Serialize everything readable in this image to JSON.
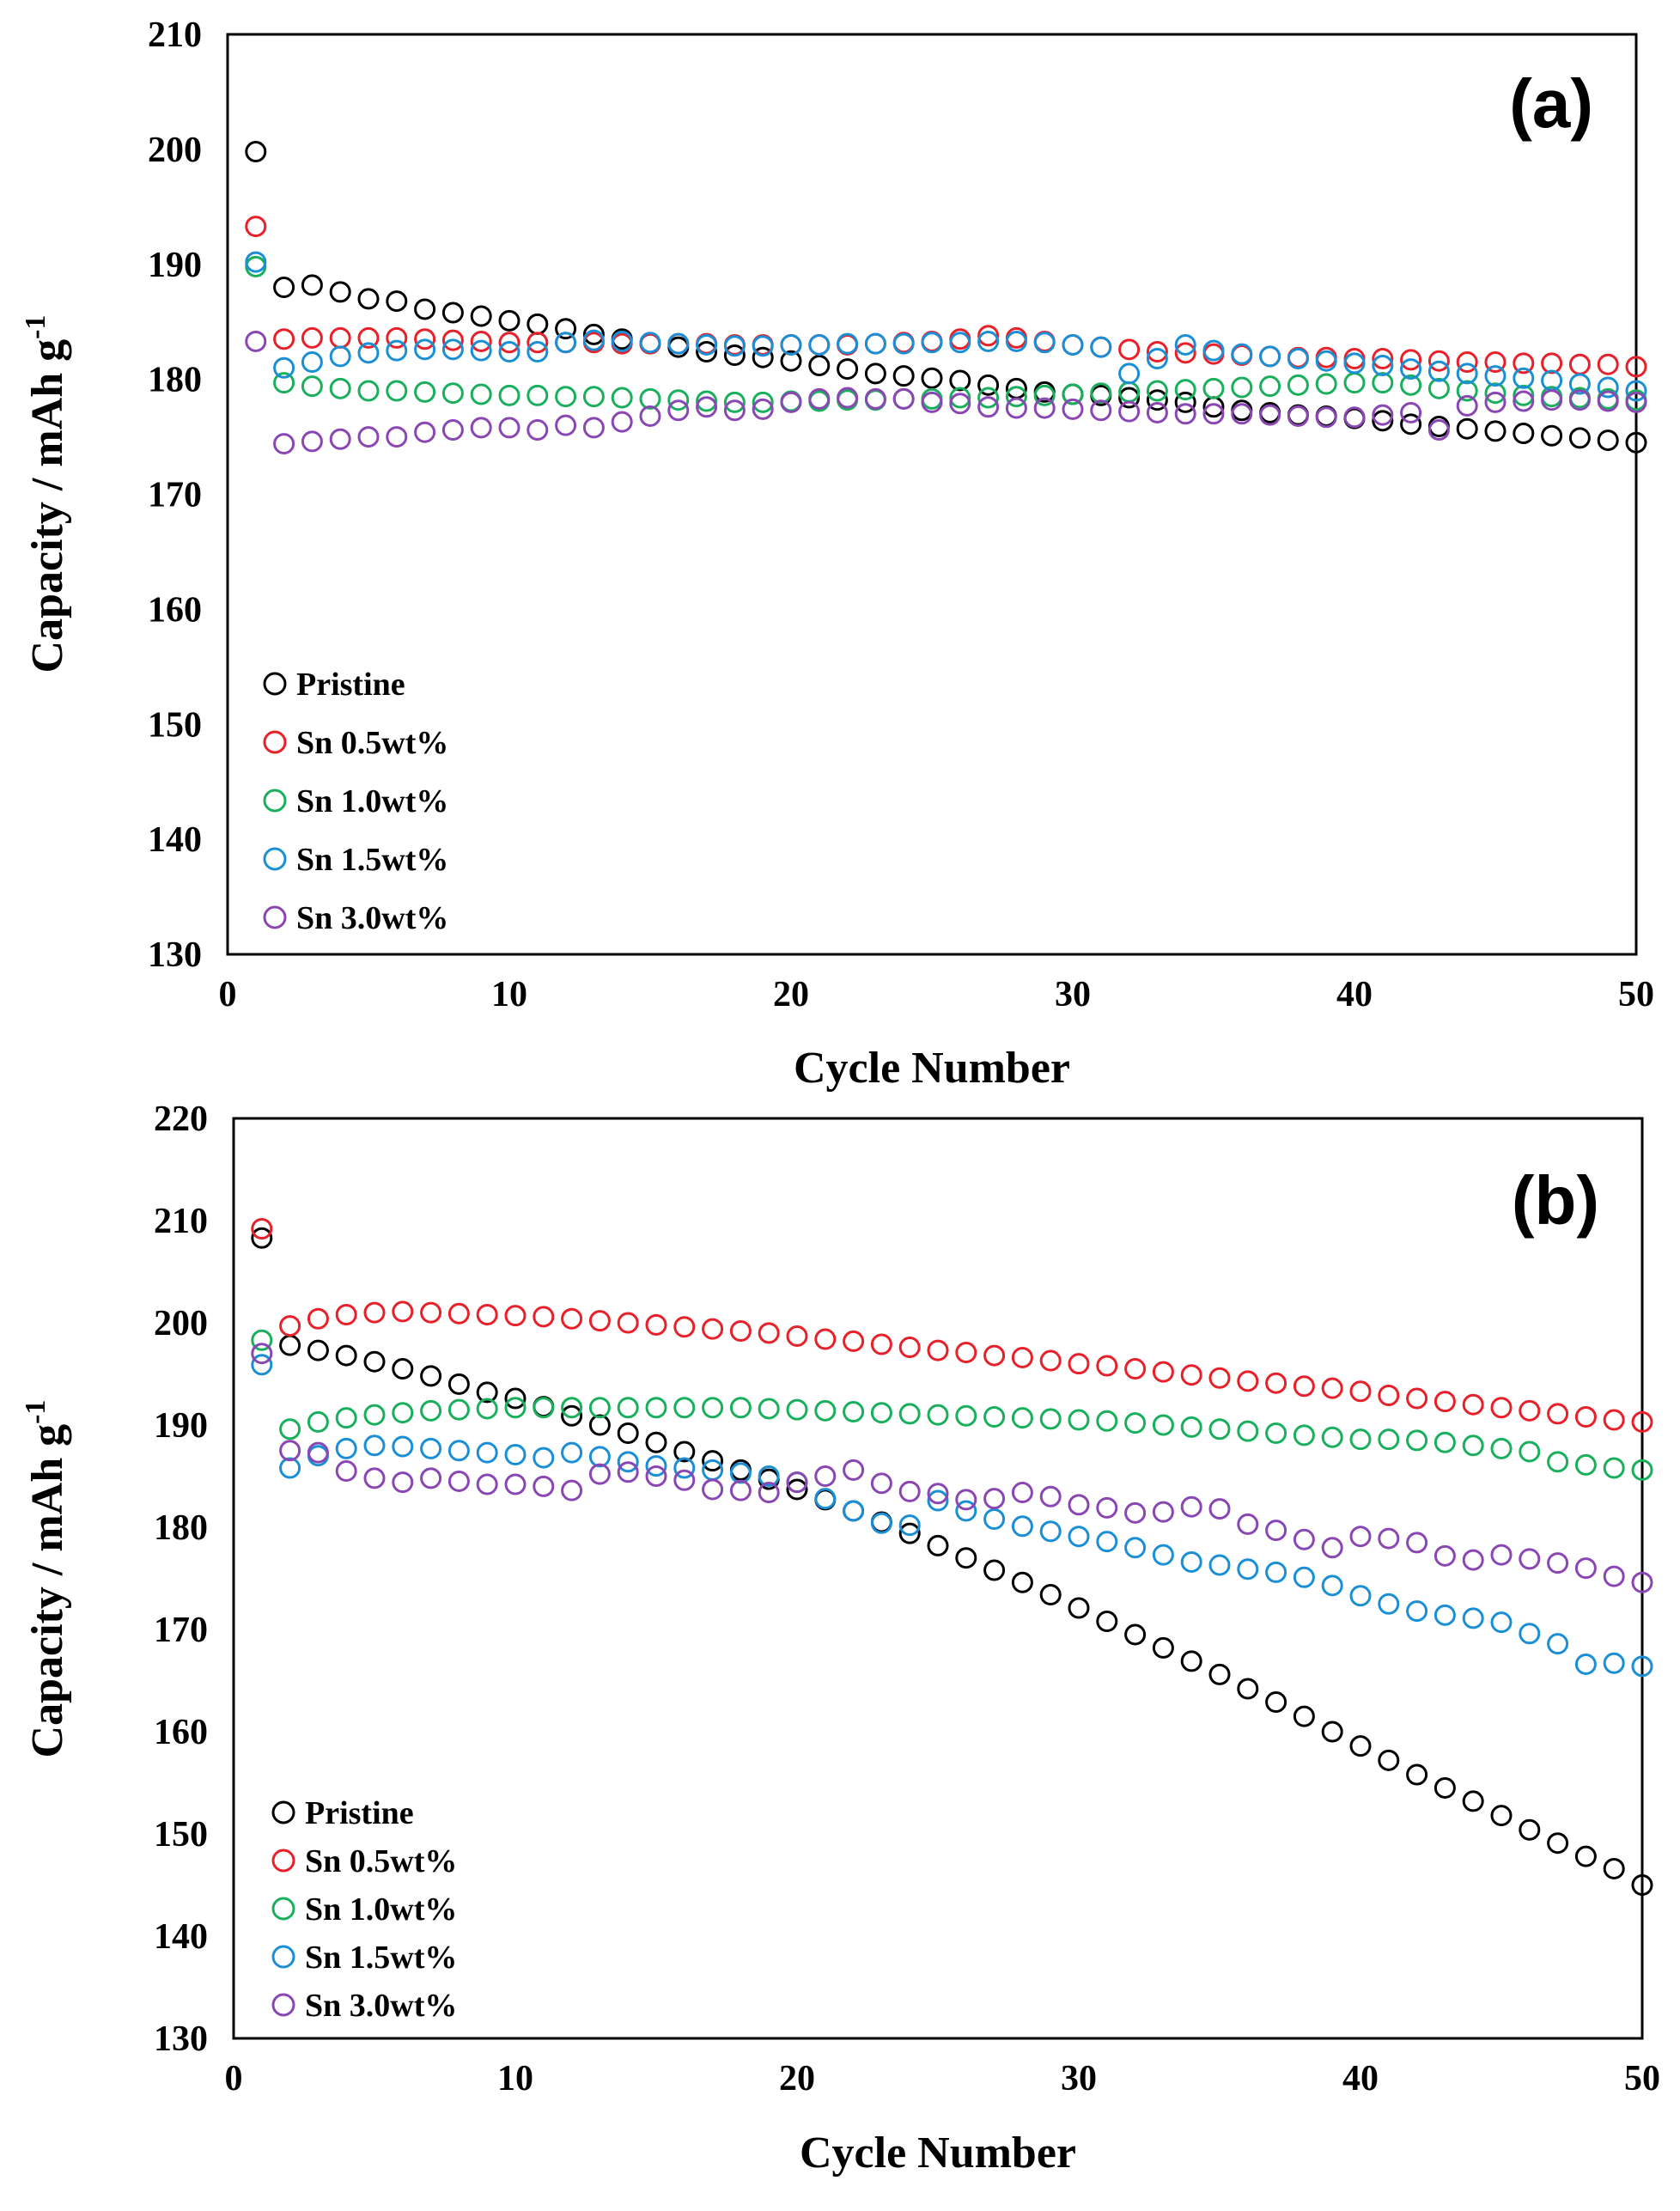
{
  "chart_data": [
    {
      "type": "scatter",
      "panel_label": "(a)",
      "xlabel": "Cycle Number",
      "ylabel_main": "Capacity / mAh g",
      "ylabel_sup": "-1",
      "xlim": [
        0,
        50
      ],
      "ylim": [
        130,
        210
      ],
      "xticks": [
        0,
        10,
        20,
        30,
        40,
        50
      ],
      "yticks": [
        130,
        140,
        150,
        160,
        170,
        180,
        190,
        200,
        210
      ],
      "legend_position": "lower-left",
      "series": [
        {
          "name": "Pristine",
          "color": "#000000",
          "values": [
            199.8,
            188.0,
            188.2,
            187.6,
            187.0,
            186.8,
            186.1,
            185.8,
            185.5,
            185.1,
            184.8,
            184.4,
            183.9,
            183.5,
            183.1,
            182.8,
            182.4,
            182.1,
            181.9,
            181.6,
            181.2,
            180.9,
            180.5,
            180.3,
            180.1,
            179.9,
            179.5,
            179.2,
            178.9,
            178.7,
            178.6,
            178.4,
            178.2,
            178.0,
            177.6,
            177.3,
            177.1,
            176.9,
            176.8,
            176.6,
            176.4,
            176.1,
            175.9,
            175.7,
            175.5,
            175.3,
            175.1,
            174.9,
            174.7,
            174.5
          ]
        },
        {
          "name": "Sn 0.5wt%",
          "color": "#e8202a",
          "values": [
            193.3,
            183.5,
            183.6,
            183.6,
            183.6,
            183.6,
            183.5,
            183.4,
            183.3,
            183.2,
            183.2,
            183.2,
            183.2,
            183.1,
            183.1,
            183.1,
            183.1,
            183.0,
            183.0,
            183.0,
            183.0,
            183.0,
            183.1,
            183.2,
            183.3,
            183.5,
            183.8,
            183.6,
            183.3,
            183.0,
            182.8,
            182.6,
            182.4,
            182.3,
            182.2,
            182.1,
            182.0,
            181.9,
            181.9,
            181.8,
            181.8,
            181.7,
            181.6,
            181.5,
            181.5,
            181.4,
            181.4,
            181.3,
            181.3,
            181.1
          ]
        },
        {
          "name": "Sn 1.0wt%",
          "color": "#1aaf5d",
          "values": [
            189.8,
            179.7,
            179.4,
            179.2,
            179.0,
            179.0,
            178.9,
            178.8,
            178.7,
            178.6,
            178.6,
            178.5,
            178.5,
            178.4,
            178.3,
            178.2,
            178.1,
            178.0,
            178.0,
            178.1,
            178.1,
            178.2,
            178.2,
            178.3,
            178.3,
            178.4,
            178.4,
            178.5,
            178.6,
            178.7,
            178.8,
            178.9,
            179.0,
            179.1,
            179.2,
            179.3,
            179.4,
            179.5,
            179.6,
            179.7,
            179.7,
            179.5,
            179.2,
            179.0,
            178.8,
            178.6,
            178.5,
            178.4,
            178.3,
            178.2
          ]
        },
        {
          "name": "Sn 1.5wt%",
          "color": "#1a8fd6",
          "values": [
            190.2,
            181.0,
            181.5,
            182.0,
            182.3,
            182.5,
            182.6,
            182.6,
            182.5,
            182.4,
            182.4,
            183.2,
            183.4,
            183.3,
            183.2,
            183.1,
            183.0,
            182.9,
            182.9,
            183.0,
            183.0,
            183.1,
            183.1,
            183.1,
            183.2,
            183.2,
            183.3,
            183.3,
            183.2,
            183.0,
            182.8,
            180.5,
            181.8,
            183.0,
            182.5,
            182.2,
            182.0,
            181.8,
            181.6,
            181.4,
            181.2,
            180.9,
            180.7,
            180.5,
            180.3,
            180.1,
            179.9,
            179.6,
            179.3,
            179.0
          ]
        },
        {
          "name": "Sn 3.0wt%",
          "color": "#8a47b4",
          "values": [
            183.3,
            174.4,
            174.6,
            174.8,
            175.0,
            175.0,
            175.4,
            175.6,
            175.8,
            175.8,
            175.6,
            176.0,
            175.8,
            176.3,
            176.8,
            177.3,
            177.6,
            177.3,
            177.4,
            178.0,
            178.3,
            178.4,
            178.3,
            178.3,
            178.0,
            177.9,
            177.6,
            177.5,
            177.5,
            177.4,
            177.3,
            177.2,
            177.1,
            177.0,
            177.0,
            177.0,
            176.9,
            176.8,
            176.7,
            176.7,
            176.9,
            177.1,
            175.6,
            177.7,
            178.0,
            178.1,
            178.2,
            178.2,
            178.1,
            178.0
          ]
        }
      ]
    },
    {
      "type": "scatter",
      "panel_label": "(b)",
      "xlabel": "Cycle Number",
      "ylabel_main": "Capacity / mAh g",
      "ylabel_sup": "-1",
      "xlim": [
        0,
        50
      ],
      "ylim": [
        130,
        220
      ],
      "xticks": [
        0,
        10,
        20,
        30,
        40,
        50
      ],
      "yticks": [
        130,
        140,
        150,
        160,
        170,
        180,
        190,
        200,
        210,
        220
      ],
      "legend_position": "lower-left",
      "series": [
        {
          "name": "Pristine",
          "color": "#000000",
          "values": [
            208.3,
            197.8,
            197.3,
            196.8,
            196.2,
            195.5,
            194.8,
            194.0,
            193.2,
            192.6,
            191.8,
            190.9,
            190.0,
            189.2,
            188.3,
            187.4,
            186.5,
            185.6,
            184.7,
            183.7,
            182.7,
            181.6,
            180.5,
            179.4,
            178.2,
            177.0,
            175.8,
            174.6,
            173.4,
            172.1,
            170.8,
            169.5,
            168.2,
            166.9,
            165.6,
            164.2,
            162.9,
            161.5,
            160.0,
            158.6,
            157.2,
            155.8,
            154.5,
            153.2,
            151.8,
            150.4,
            149.1,
            147.8,
            146.6,
            145.0
          ]
        },
        {
          "name": "Sn 0.5wt%",
          "color": "#e8202a",
          "values": [
            209.2,
            199.7,
            200.4,
            200.8,
            201.0,
            201.1,
            201.0,
            200.9,
            200.8,
            200.7,
            200.6,
            200.4,
            200.2,
            200.0,
            199.8,
            199.6,
            199.4,
            199.2,
            199.0,
            198.7,
            198.4,
            198.2,
            197.9,
            197.6,
            197.3,
            197.1,
            196.8,
            196.6,
            196.3,
            196.0,
            195.8,
            195.5,
            195.2,
            194.9,
            194.6,
            194.3,
            194.1,
            193.8,
            193.6,
            193.3,
            192.9,
            192.6,
            192.3,
            192.0,
            191.7,
            191.4,
            191.1,
            190.8,
            190.5,
            190.3
          ]
        },
        {
          "name": "Sn 1.0wt%",
          "color": "#1aaf5d",
          "values": [
            198.3,
            189.6,
            190.3,
            190.7,
            191.0,
            191.2,
            191.4,
            191.5,
            191.6,
            191.7,
            191.7,
            191.7,
            191.7,
            191.7,
            191.7,
            191.7,
            191.7,
            191.7,
            191.6,
            191.5,
            191.4,
            191.3,
            191.2,
            191.1,
            191.0,
            190.9,
            190.8,
            190.7,
            190.6,
            190.5,
            190.4,
            190.2,
            190.0,
            189.8,
            189.6,
            189.4,
            189.2,
            189.0,
            188.8,
            188.6,
            188.6,
            188.5,
            188.3,
            188.0,
            187.7,
            187.4,
            186.4,
            186.1,
            185.8,
            185.6
          ]
        },
        {
          "name": "Sn 1.5wt%",
          "color": "#1a8fd6",
          "values": [
            195.9,
            185.8,
            187.0,
            187.7,
            188.0,
            187.9,
            187.7,
            187.5,
            187.3,
            187.1,
            186.8,
            187.3,
            186.9,
            186.4,
            186.0,
            185.8,
            185.6,
            185.3,
            185.0,
            184.4,
            182.8,
            181.6,
            180.4,
            180.2,
            182.6,
            181.6,
            180.8,
            180.1,
            179.6,
            179.1,
            178.6,
            178.0,
            177.3,
            176.6,
            176.3,
            175.9,
            175.6,
            175.1,
            174.3,
            173.3,
            172.5,
            171.8,
            171.4,
            171.1,
            170.7,
            169.6,
            168.6,
            166.6,
            166.7,
            166.4
          ]
        },
        {
          "name": "Sn 3.0wt%",
          "color": "#8a47b4",
          "values": [
            197.0,
            187.5,
            187.3,
            185.5,
            184.8,
            184.4,
            184.8,
            184.5,
            184.2,
            184.2,
            184.0,
            183.6,
            185.2,
            185.4,
            185.0,
            184.6,
            183.7,
            183.6,
            183.4,
            184.4,
            185.0,
            185.6,
            184.3,
            183.5,
            183.3,
            182.7,
            182.8,
            183.4,
            183.0,
            182.2,
            181.9,
            181.4,
            181.5,
            182.0,
            181.8,
            180.3,
            179.7,
            178.8,
            178.0,
            179.1,
            178.9,
            178.5,
            177.2,
            176.8,
            177.3,
            176.9,
            176.5,
            176.0,
            175.2,
            174.6
          ]
        }
      ]
    }
  ]
}
